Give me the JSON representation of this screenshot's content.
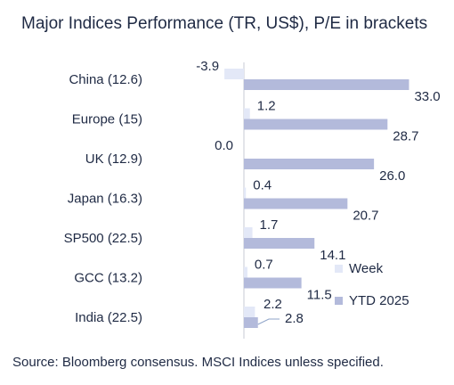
{
  "chart_data": {
    "type": "bar",
    "orientation": "horizontal",
    "title": "Major Indices Performance (TR, US$), P/E in brackets",
    "categories": [
      "China (12.6)",
      "Europe (15)",
      "UK (12.9)",
      "Japan (16.3)",
      "SP500 (22.5)",
      "GCC (13.2)",
      "India (22.5)"
    ],
    "series": [
      {
        "name": "Week",
        "values": [
          -3.9,
          1.2,
          0.0,
          0.4,
          1.7,
          0.7,
          2.2
        ]
      },
      {
        "name": "YTD 2025",
        "values": [
          33.0,
          28.7,
          26.0,
          20.7,
          14.1,
          11.5,
          2.8
        ]
      }
    ],
    "value_labels": [
      [
        "-3.9",
        "1.2",
        "0.0",
        "0.4",
        "1.7",
        "0.7",
        "2.2"
      ],
      [
        "33.0",
        "28.7",
        "26.0",
        "20.7",
        "14.1",
        "11.5",
        "2.8"
      ]
    ],
    "xlim": [
      -4.5,
      35
    ],
    "grid": false,
    "legend_position": "bottom-right",
    "colors": {
      "Week": "#e3e8f7",
      "YTD 2025": "#b3badb",
      "axis": "#c7cbd6"
    }
  },
  "source_note": "Source: Bloomberg consensus. MSCI Indices unless specified."
}
